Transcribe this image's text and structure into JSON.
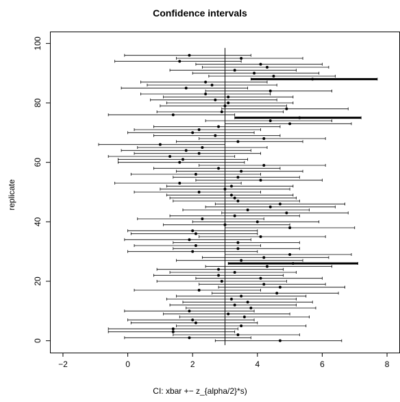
{
  "chart_data": {
    "type": "scatter",
    "title": "Confidence intervals",
    "xlabel": "CI:  xbar +− z_{alpha/2}*s)",
    "ylabel": "replicate",
    "xlim": [
      -2.4,
      8.4
    ],
    "ylim": [
      -4,
      104
    ],
    "x_ticks": [
      -2,
      0,
      2,
      4,
      6,
      8
    ],
    "x_tick_labels": [
      "−2",
      "0",
      "2",
      "4",
      "6",
      "8"
    ],
    "y_ticks": [
      0,
      20,
      40,
      60,
      80,
      100
    ],
    "y_tick_labels": [
      "0",
      "20",
      "40",
      "60",
      "80",
      "100"
    ],
    "reference_line_x": 3,
    "grid": false,
    "legend": "none",
    "mark_style": "interval with center point; intervals missing the reference line drawn bold",
    "intervals": [
      {
        "replicate": 0,
        "lower": 2.7,
        "center": 4.7,
        "upper": 6.6
      },
      {
        "replicate": 1,
        "lower": -0.1,
        "center": 1.9,
        "upper": 3.8
      },
      {
        "replicate": 2,
        "lower": 1.4,
        "center": 3.4,
        "upper": 5.3
      },
      {
        "replicate": 3,
        "lower": -0.6,
        "center": 1.4,
        "upper": 3.3
      },
      {
        "replicate": 4,
        "lower": -0.6,
        "center": 1.4,
        "upper": 3.4
      },
      {
        "replicate": 5,
        "lower": 1.5,
        "center": 3.5,
        "upper": 5.5
      },
      {
        "replicate": 6,
        "lower": 0.1,
        "center": 2.1,
        "upper": 4.0
      },
      {
        "replicate": 7,
        "lower": 0.0,
        "center": 2.0,
        "upper": 3.9
      },
      {
        "replicate": 8,
        "lower": 1.6,
        "center": 3.6,
        "upper": 5.6
      },
      {
        "replicate": 9,
        "lower": 1.1,
        "center": 3.1,
        "upper": 5.0
      },
      {
        "replicate": 10,
        "lower": -0.1,
        "center": 1.9,
        "upper": 3.9
      },
      {
        "replicate": 11,
        "lower": 1.8,
        "center": 3.8,
        "upper": 5.8
      },
      {
        "replicate": 12,
        "lower": 1.3,
        "center": 3.3,
        "upper": 5.2
      },
      {
        "replicate": 13,
        "lower": 1.7,
        "center": 3.7,
        "upper": 5.7
      },
      {
        "replicate": 14,
        "lower": 1.2,
        "center": 3.2,
        "upper": 5.2
      },
      {
        "replicate": 15,
        "lower": 1.5,
        "center": 3.5,
        "upper": 5.5
      },
      {
        "replicate": 16,
        "lower": 2.6,
        "center": 4.6,
        "upper": 6.5
      },
      {
        "replicate": 17,
        "lower": 0.2,
        "center": 2.2,
        "upper": 4.1
      },
      {
        "replicate": 18,
        "lower": 2.8,
        "center": 4.7,
        "upper": 6.7
      },
      {
        "replicate": 19,
        "lower": 2.2,
        "center": 4.2,
        "upper": 6.1
      },
      {
        "replicate": 20,
        "lower": 0.9,
        "center": 2.9,
        "upper": 4.9
      },
      {
        "replicate": 21,
        "lower": 2.1,
        "center": 4.1,
        "upper": 6.0
      },
      {
        "replicate": 22,
        "lower": 0.8,
        "center": 2.8,
        "upper": 4.8
      },
      {
        "replicate": 23,
        "lower": 1.3,
        "center": 3.3,
        "upper": 5.2
      },
      {
        "replicate": 24,
        "lower": 0.9,
        "center": 2.8,
        "upper": 4.8
      },
      {
        "replicate": 25,
        "lower": 2.4,
        "center": 4.3,
        "upper": 6.3
      },
      {
        "replicate": 26,
        "lower": 3.1,
        "center": 5.1,
        "upper": 7.1
      },
      {
        "replicate": 27,
        "lower": 1.5,
        "center": 3.5,
        "upper": 5.4
      },
      {
        "replicate": 28,
        "lower": 2.3,
        "center": 4.2,
        "upper": 6.2
      },
      {
        "replicate": 29,
        "lower": 3.0,
        "center": 5.0,
        "upper": 6.9
      },
      {
        "replicate": 30,
        "lower": 0.0,
        "center": 2.0,
        "upper": 4.0
      },
      {
        "replicate": 31,
        "lower": 1.4,
        "center": 3.4,
        "upper": 5.3
      },
      {
        "replicate": 32,
        "lower": 0.2,
        "center": 2.1,
        "upper": 4.1
      },
      {
        "replicate": 33,
        "lower": 1.4,
        "center": 3.4,
        "upper": 5.3
      },
      {
        "replicate": 34,
        "lower": -0.1,
        "center": 1.9,
        "upper": 3.8
      },
      {
        "replicate": 35,
        "lower": 2.2,
        "center": 4.1,
        "upper": 6.1
      },
      {
        "replicate": 36,
        "lower": 0.1,
        "center": 2.1,
        "upper": 4.0
      },
      {
        "replicate": 37,
        "lower": 0.0,
        "center": 2.0,
        "upper": 4.0
      },
      {
        "replicate": 38,
        "lower": 3.0,
        "center": 5.0,
        "upper": 7.0
      },
      {
        "replicate": 39,
        "lower": 1.1,
        "center": 3.0,
        "upper": 5.0
      },
      {
        "replicate": 40,
        "lower": 2.0,
        "center": 4.0,
        "upper": 5.9
      },
      {
        "replicate": 41,
        "lower": 0.3,
        "center": 2.3,
        "upper": 4.2
      },
      {
        "replicate": 42,
        "lower": 1.3,
        "center": 3.3,
        "upper": 5.3
      },
      {
        "replicate": 43,
        "lower": 2.9,
        "center": 4.9,
        "upper": 6.8
      },
      {
        "replicate": 44,
        "lower": 1.7,
        "center": 3.7,
        "upper": 5.6
      },
      {
        "replicate": 45,
        "lower": 2.4,
        "center": 4.4,
        "upper": 6.4
      },
      {
        "replicate": 46,
        "lower": 2.7,
        "center": 4.7,
        "upper": 6.7
      },
      {
        "replicate": 47,
        "lower": 1.4,
        "center": 3.4,
        "upper": 5.3
      },
      {
        "replicate": 48,
        "lower": 1.3,
        "center": 3.3,
        "upper": 5.2
      },
      {
        "replicate": 49,
        "lower": 1.2,
        "center": 3.2,
        "upper": 5.1
      },
      {
        "replicate": 50,
        "lower": 0.2,
        "center": 2.2,
        "upper": 4.1
      },
      {
        "replicate": 51,
        "lower": 1.0,
        "center": 3.0,
        "upper": 5.0
      },
      {
        "replicate": 52,
        "lower": 1.2,
        "center": 3.2,
        "upper": 5.1
      },
      {
        "replicate": 53,
        "lower": -0.4,
        "center": 1.6,
        "upper": 3.5
      },
      {
        "replicate": 54,
        "lower": 2.1,
        "center": 4.1,
        "upper": 6.0
      },
      {
        "replicate": 55,
        "lower": 1.4,
        "center": 3.4,
        "upper": 5.3
      },
      {
        "replicate": 56,
        "lower": 0.1,
        "center": 2.1,
        "upper": 4.1
      },
      {
        "replicate": 57,
        "lower": 1.5,
        "center": 3.5,
        "upper": 5.4
      },
      {
        "replicate": 58,
        "lower": 0.8,
        "center": 2.8,
        "upper": 4.7
      },
      {
        "replicate": 59,
        "lower": 2.2,
        "center": 4.2,
        "upper": 6.1
      },
      {
        "replicate": 60,
        "lower": -0.3,
        "center": 1.6,
        "upper": 3.6
      },
      {
        "replicate": 61,
        "lower": -0.3,
        "center": 1.7,
        "upper": 3.7
      },
      {
        "replicate": 62,
        "lower": -0.6,
        "center": 1.3,
        "upper": 3.3
      },
      {
        "replicate": 63,
        "lower": 0.2,
        "center": 2.2,
        "upper": 4.1
      },
      {
        "replicate": 64,
        "lower": -0.2,
        "center": 1.8,
        "upper": 3.8
      },
      {
        "replicate": 65,
        "lower": 0.3,
        "center": 2.3,
        "upper": 4.3
      },
      {
        "replicate": 66,
        "lower": -0.9,
        "center": 1.0,
        "upper": 3.0
      },
      {
        "replicate": 67,
        "lower": 1.5,
        "center": 3.4,
        "upper": 5.4
      },
      {
        "replicate": 68,
        "lower": 2.2,
        "center": 4.2,
        "upper": 6.1
      },
      {
        "replicate": 69,
        "lower": 0.8,
        "center": 2.7,
        "upper": 4.7
      },
      {
        "replicate": 70,
        "lower": 0.0,
        "center": 2.0,
        "upper": 3.9
      },
      {
        "replicate": 71,
        "lower": 0.2,
        "center": 2.2,
        "upper": 4.1
      },
      {
        "replicate": 72,
        "lower": 0.8,
        "center": 2.8,
        "upper": 4.7
      },
      {
        "replicate": 73,
        "lower": 3.0,
        "center": 5.0,
        "upper": 6.9
      },
      {
        "replicate": 74,
        "lower": 2.4,
        "center": 4.4,
        "upper": 6.3
      },
      {
        "replicate": 75,
        "lower": 3.3,
        "center": 5.3,
        "upper": 7.2
      },
      {
        "replicate": 76,
        "lower": -0.6,
        "center": 1.4,
        "upper": 3.3
      },
      {
        "replicate": 77,
        "lower": 0.9,
        "center": 2.9,
        "upper": 4.8
      },
      {
        "replicate": 78,
        "lower": 2.9,
        "center": 4.9,
        "upper": 6.8
      },
      {
        "replicate": 79,
        "lower": 1.0,
        "center": 3.0,
        "upper": 4.9
      },
      {
        "replicate": 80,
        "lower": 1.2,
        "center": 3.1,
        "upper": 5.1
      },
      {
        "replicate": 81,
        "lower": 0.7,
        "center": 2.7,
        "upper": 4.6
      },
      {
        "replicate": 82,
        "lower": 1.1,
        "center": 3.1,
        "upper": 5.1
      },
      {
        "replicate": 83,
        "lower": 0.4,
        "center": 2.4,
        "upper": 4.4
      },
      {
        "replicate": 84,
        "lower": 2.4,
        "center": 4.4,
        "upper": 6.3
      },
      {
        "replicate": 85,
        "lower": -0.2,
        "center": 1.8,
        "upper": 3.7
      },
      {
        "replicate": 86,
        "lower": 0.6,
        "center": 2.6,
        "upper": 4.6
      },
      {
        "replicate": 87,
        "lower": 0.4,
        "center": 2.4,
        "upper": 4.3
      },
      {
        "replicate": 88,
        "lower": 3.8,
        "center": 5.7,
        "upper": 7.7
      },
      {
        "replicate": 89,
        "lower": 2.5,
        "center": 4.5,
        "upper": 6.4
      },
      {
        "replicate": 90,
        "lower": 2.0,
        "center": 3.9,
        "upper": 5.9
      },
      {
        "replicate": 91,
        "lower": 1.3,
        "center": 3.3,
        "upper": 5.2
      },
      {
        "replicate": 92,
        "lower": 2.3,
        "center": 4.3,
        "upper": 6.2
      },
      {
        "replicate": 93,
        "lower": 2.1,
        "center": 4.1,
        "upper": 6.0
      },
      {
        "replicate": 94,
        "lower": -0.4,
        "center": 1.6,
        "upper": 3.5
      },
      {
        "replicate": 95,
        "lower": 1.5,
        "center": 3.5,
        "upper": 5.4
      },
      {
        "replicate": 96,
        "lower": -0.1,
        "center": 1.9,
        "upper": 3.8
      }
    ]
  }
}
